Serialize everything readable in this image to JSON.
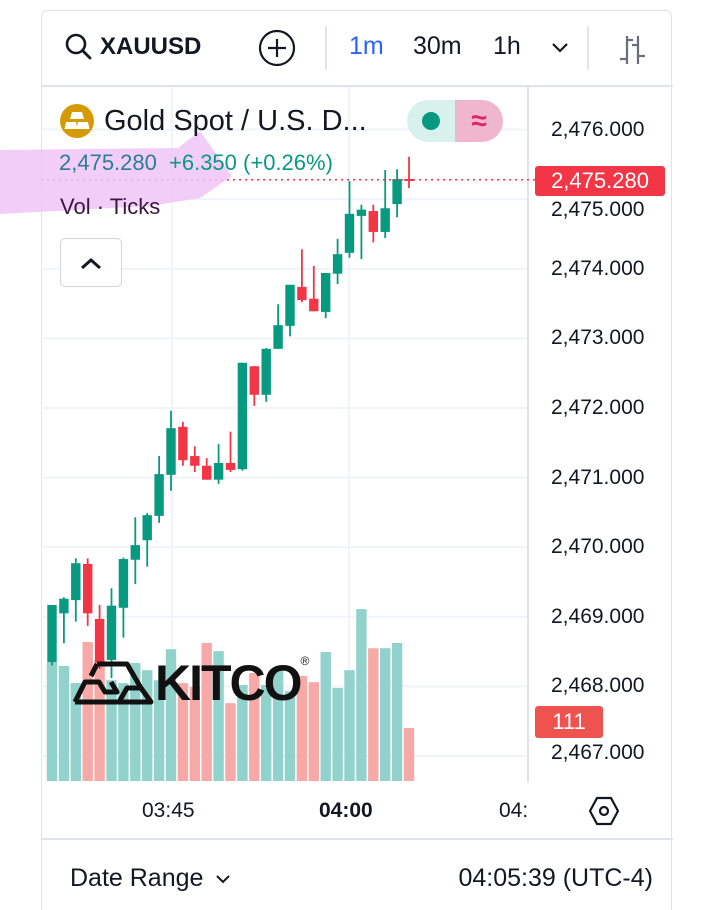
{
  "header": {
    "symbol": "XAUUSD",
    "timeframes": [
      "1m",
      "30m",
      "1h"
    ],
    "active_timeframe": "1m"
  },
  "legend": {
    "title": "Gold Spot / U.S. D...",
    "last_price": "2,475.280",
    "change": "+6.350 (+0.26%)",
    "indicator": "Vol · Ticks"
  },
  "price_axis": {
    "labels": [
      "2,476.000",
      "2,475.000",
      "2,474.000",
      "2,473.000",
      "2,472.000",
      "2,471.000",
      "2,470.000",
      "2,469.000",
      "2,468.000",
      "2,467.000"
    ],
    "last_price_tag": "2,475.280",
    "volume_tag": "111"
  },
  "time_axis": {
    "labels": [
      "03:45",
      "04:00",
      "04:"
    ]
  },
  "footer": {
    "date_range": "Date Range",
    "clock": "04:05:39 (UTC-4)"
  },
  "watermark": "KITCO",
  "colors": {
    "up": "#089981",
    "down": "#f23645",
    "up_volume": "#92d2cc",
    "down_volume": "#f7a9a7",
    "accent": "#2962ff",
    "highlight": "#f0c4f7"
  },
  "chart_data": {
    "type": "candlestick",
    "symbol": "XAUUSD",
    "interval": "1m",
    "ylim": [
      2466.6,
      2476.6
    ],
    "yticks": [
      2467,
      2468,
      2469,
      2470,
      2471,
      2472,
      2473,
      2474,
      2475,
      2476
    ],
    "last_price": 2475.28,
    "candles": [
      {
        "t": "03:35",
        "o": 2468.35,
        "h": 2469.17,
        "l": 2468.3,
        "c": 2469.17,
        "v": 249
      },
      {
        "t": "03:36",
        "o": 2469.05,
        "h": 2469.28,
        "l": 2468.62,
        "c": 2469.26,
        "v": 241
      },
      {
        "t": "03:37",
        "o": 2469.24,
        "h": 2469.84,
        "l": 2468.93,
        "c": 2469.77,
        "v": 205
      },
      {
        "t": "03:38",
        "o": 2469.76,
        "h": 2469.84,
        "l": 2468.87,
        "c": 2469.05,
        "v": 291
      },
      {
        "t": "03:39",
        "o": 2468.97,
        "h": 2469.17,
        "l": 2468.25,
        "c": 2468.34,
        "v": 253
      },
      {
        "t": "03:40",
        "o": 2468.38,
        "h": 2469.41,
        "l": 2468.12,
        "c": 2469.16,
        "v": 211
      },
      {
        "t": "03:41",
        "o": 2469.13,
        "h": 2469.85,
        "l": 2468.7,
        "c": 2469.83,
        "v": 205
      },
      {
        "t": "03:42",
        "o": 2469.82,
        "h": 2470.43,
        "l": 2469.47,
        "c": 2470.03,
        "v": 247
      },
      {
        "t": "03:43",
        "o": 2470.1,
        "h": 2470.49,
        "l": 2469.72,
        "c": 2470.46,
        "v": 232
      },
      {
        "t": "03:44",
        "o": 2470.45,
        "h": 2471.31,
        "l": 2470.35,
        "c": 2471.05,
        "v": 211
      },
      {
        "t": "03:45",
        "o": 2471.04,
        "h": 2471.96,
        "l": 2470.81,
        "c": 2471.71,
        "v": 276
      },
      {
        "t": "03:46",
        "o": 2471.73,
        "h": 2471.8,
        "l": 2471.17,
        "c": 2471.25,
        "v": 205
      },
      {
        "t": "03:47",
        "o": 2471.31,
        "h": 2471.45,
        "l": 2471.08,
        "c": 2471.17,
        "v": 197
      },
      {
        "t": "03:48",
        "o": 2471.17,
        "h": 2471.28,
        "l": 2470.97,
        "c": 2470.97,
        "v": 289
      },
      {
        "t": "03:49",
        "o": 2470.97,
        "h": 2471.48,
        "l": 2470.91,
        "c": 2471.21,
        "v": 272
      },
      {
        "t": "03:50",
        "o": 2471.21,
        "h": 2471.66,
        "l": 2471.08,
        "c": 2471.11,
        "v": 163
      },
      {
        "t": "03:51",
        "o": 2471.12,
        "h": 2472.65,
        "l": 2471.1,
        "c": 2472.65,
        "v": 201
      },
      {
        "t": "03:52",
        "o": 2472.6,
        "h": 2472.6,
        "l": 2472.03,
        "c": 2472.19,
        "v": 226
      },
      {
        "t": "03:53",
        "o": 2472.19,
        "h": 2472.86,
        "l": 2472.09,
        "c": 2472.85,
        "v": 201
      },
      {
        "t": "03:54",
        "o": 2472.85,
        "h": 2473.49,
        "l": 2472.85,
        "c": 2473.19,
        "v": 235
      },
      {
        "t": "03:55",
        "o": 2473.18,
        "h": 2473.77,
        "l": 2473.03,
        "c": 2473.77,
        "v": 188
      },
      {
        "t": "03:56",
        "o": 2473.74,
        "h": 2474.28,
        "l": 2473.52,
        "c": 2473.55,
        "v": 220
      },
      {
        "t": "03:57",
        "o": 2473.57,
        "h": 2474.04,
        "l": 2473.39,
        "c": 2473.39,
        "v": 207
      },
      {
        "t": "03:58",
        "o": 2473.38,
        "h": 2473.94,
        "l": 2473.29,
        "c": 2473.94,
        "v": 270
      },
      {
        "t": "03:59",
        "o": 2473.93,
        "h": 2474.43,
        "l": 2473.78,
        "c": 2474.21,
        "v": 195
      },
      {
        "t": "04:00",
        "o": 2474.23,
        "h": 2475.26,
        "l": 2474.16,
        "c": 2474.79,
        "v": 232
      },
      {
        "t": "04:01",
        "o": 2474.76,
        "h": 2474.92,
        "l": 2474.14,
        "c": 2474.85,
        "v": 360
      },
      {
        "t": "04:02",
        "o": 2474.83,
        "h": 2474.92,
        "l": 2474.38,
        "c": 2474.53,
        "v": 278
      },
      {
        "t": "04:03",
        "o": 2474.53,
        "h": 2475.42,
        "l": 2474.44,
        "c": 2474.87,
        "v": 278
      },
      {
        "t": "04:04",
        "o": 2474.93,
        "h": 2475.43,
        "l": 2474.74,
        "c": 2475.29,
        "v": 289
      },
      {
        "t": "04:05",
        "o": 2475.29,
        "h": 2475.61,
        "l": 2475.16,
        "c": 2475.28,
        "v": 111
      }
    ]
  }
}
